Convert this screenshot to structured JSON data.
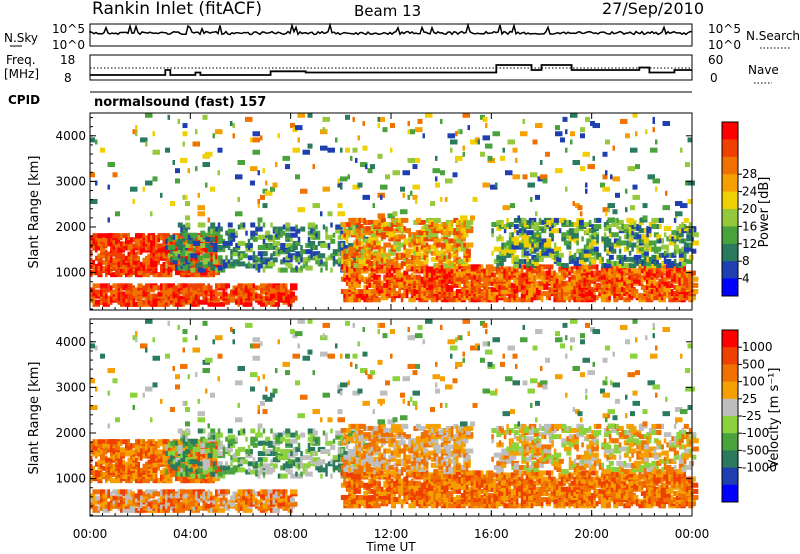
{
  "header": {
    "station": "Rankin Inlet (fitACF)",
    "beam": "Beam 13",
    "date": "27/Sep/2010"
  },
  "top_panels": {
    "nsky_label": "N.Sky",
    "nsky_ticks": [
      "10^5",
      "10^0"
    ],
    "nsearch_label": "N.Search",
    "nsearch_ticks": [
      "10^5",
      "10^0"
    ],
    "freq_label_1": "Freq.",
    "freq_label_2": "[MHz]",
    "freq_ticks": [
      "18",
      "8"
    ],
    "nave_label": "Nave",
    "nave_ticks": [
      "60",
      "0"
    ],
    "cpid_label": "CPID",
    "cpid_value": "normalsound (fast) 157"
  },
  "colors": {
    "power_scale": [
      "#0000ff",
      "#1f3fb0",
      "#2a7a5e",
      "#4aa23c",
      "#96c83c",
      "#f0d000",
      "#f5a000",
      "#f07000",
      "#f04000",
      "#ff0000"
    ],
    "velocity_scale": [
      "#0000ff",
      "#1f3fb0",
      "#2a7a5e",
      "#4aa23c",
      "#8cd23c",
      "#bebebe",
      "#f5a000",
      "#f07000",
      "#f04000",
      "#ff0000"
    ]
  },
  "chart_data": [
    {
      "type": "heatmap",
      "name": "power",
      "ylabel": "Slant Range [km]",
      "ylim": [
        180,
        4500
      ],
      "yticks": [
        "1000",
        "2000",
        "3000",
        "4000"
      ],
      "colorbar_label": "Power [dB]",
      "colorbar_ticks": [
        "4",
        "8",
        "12",
        "16",
        "20",
        "24",
        "28"
      ],
      "xlim_hours": [
        0,
        24
      ]
    },
    {
      "type": "heatmap",
      "name": "velocity",
      "ylabel": "Slant Range [km]",
      "ylim": [
        180,
        4500
      ],
      "yticks": [
        "1000",
        "2000",
        "3000",
        "4000"
      ],
      "colorbar_label": "Velocity [m s⁻¹]",
      "colorbar_ticks": [
        "1000",
        "500",
        "100",
        "25",
        "-25",
        "-100",
        "-500",
        "-1000"
      ],
      "xlabel": "Time UT",
      "xticks": [
        "00:00",
        "04:00",
        "08:00",
        "12:00",
        "16:00",
        "20:00",
        "00:00"
      ],
      "xlim_hours": [
        0,
        24
      ]
    },
    {
      "type": "line",
      "name": "frequency",
      "ylabel": "Freq. [MHz]",
      "ylim": [
        8,
        18
      ],
      "x_hours": [
        0,
        3.0,
        3.0,
        3.2,
        3.2,
        4.2,
        4.2,
        4.4,
        4.4,
        7.2,
        7.2,
        8.2,
        8.2,
        8.6,
        8.6,
        16.2,
        16.2,
        17.6,
        17.6,
        18.0,
        18.0,
        19.2,
        19.2,
        21.9,
        21.9,
        22.3,
        22.3,
        23.3,
        23.3,
        24
      ],
      "values": [
        10,
        10,
        12,
        12,
        10,
        10,
        11,
        11,
        10,
        10,
        11.5,
        11.5,
        11.5,
        11.5,
        11,
        11,
        14,
        14,
        12,
        12,
        14,
        14,
        12,
        12,
        13,
        13,
        11,
        11,
        12,
        12
      ]
    }
  ]
}
